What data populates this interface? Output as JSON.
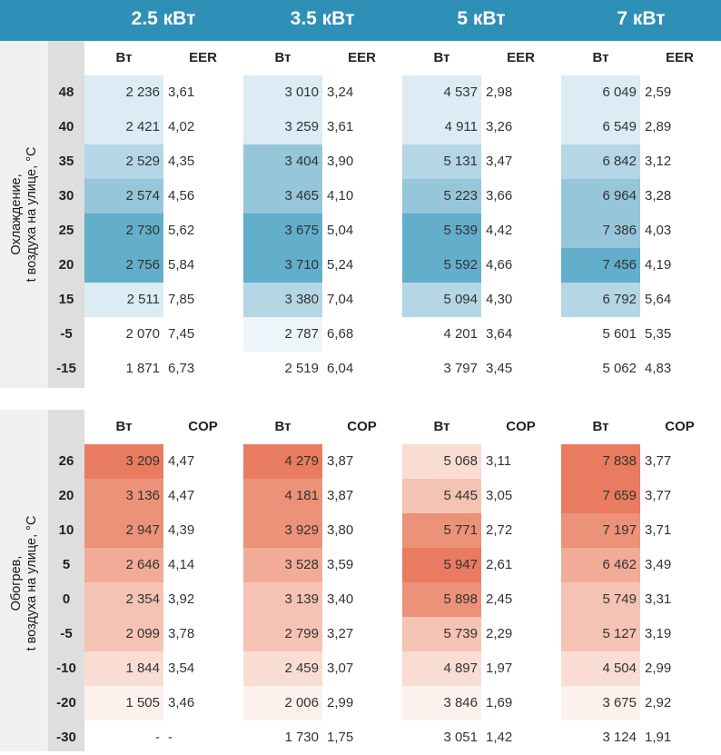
{
  "powers": [
    "2.5 кВт",
    "3.5 кВт",
    "5 кВт",
    "7 кВт"
  ],
  "cooling": {
    "side_label_line1": "Охлаждение,",
    "side_label_line2": "t воздуха на улице, °С",
    "col_w": "Вт",
    "col_ratio": "EER",
    "rows": [
      {
        "t": "48",
        "cells": [
          [
            "2 236",
            "3,61"
          ],
          [
            "3 010",
            "3,24"
          ],
          [
            "4 537",
            "2,98"
          ],
          [
            "6 049",
            "2,59"
          ]
        ],
        "levels": [
          1,
          1,
          1,
          1
        ]
      },
      {
        "t": "40",
        "cells": [
          [
            "2 421",
            "4,02"
          ],
          [
            "3 259",
            "3,61"
          ],
          [
            "4 911",
            "3,26"
          ],
          [
            "6 549",
            "2,89"
          ]
        ],
        "levels": [
          1,
          1,
          1,
          1
        ]
      },
      {
        "t": "35",
        "cells": [
          [
            "2 529",
            "4,35"
          ],
          [
            "3 404",
            "3,90"
          ],
          [
            "5 131",
            "3,47"
          ],
          [
            "6 842",
            "3,12"
          ]
        ],
        "levels": [
          2,
          3,
          2,
          2
        ]
      },
      {
        "t": "30",
        "cells": [
          [
            "2 574",
            "4,56"
          ],
          [
            "3 465",
            "4,10"
          ],
          [
            "5 223",
            "3,66"
          ],
          [
            "6 964",
            "3,28"
          ]
        ],
        "levels": [
          3,
          3,
          3,
          3
        ]
      },
      {
        "t": "25",
        "cells": [
          [
            "2 730",
            "5,62"
          ],
          [
            "3 675",
            "5,04"
          ],
          [
            "5 539",
            "4,42"
          ],
          [
            "7 386",
            "4,03"
          ]
        ],
        "levels": [
          4,
          4,
          4,
          3
        ]
      },
      {
        "t": "20",
        "cells": [
          [
            "2 756",
            "5,84"
          ],
          [
            "3 710",
            "5,24"
          ],
          [
            "5 592",
            "4,66"
          ],
          [
            "7 456",
            "4,19"
          ]
        ],
        "levels": [
          4,
          4,
          4,
          4
        ]
      },
      {
        "t": "15",
        "cells": [
          [
            "2 511",
            "7,85"
          ],
          [
            "3 380",
            "7,04"
          ],
          [
            "5 094",
            "4,30"
          ],
          [
            "6 792",
            "5,64"
          ]
        ],
        "levels": [
          1,
          2,
          2,
          2
        ]
      },
      {
        "t": "-5",
        "cells": [
          [
            "2 070",
            "7,45"
          ],
          [
            "2 787",
            "6,68"
          ],
          [
            "4 201",
            "3,64"
          ],
          [
            "5 601",
            "5,35"
          ]
        ],
        "levels": [
          0,
          0.5,
          0,
          0
        ]
      },
      {
        "t": "-15",
        "cells": [
          [
            "1 871",
            "6,73"
          ],
          [
            "2 519",
            "6,04"
          ],
          [
            "3 797",
            "3,45"
          ],
          [
            "5 062",
            "4,83"
          ]
        ],
        "levels": [
          0,
          0,
          0,
          0
        ]
      }
    ]
  },
  "heating": {
    "side_label_line1": "Обогрев,",
    "side_label_line2": "t воздуха на улице, °С",
    "col_w": "Вт",
    "col_ratio": "COP",
    "rows": [
      {
        "t": "26",
        "cells": [
          [
            "3 209",
            "4,47"
          ],
          [
            "4 279",
            "3,87"
          ],
          [
            "5 068",
            "3,11"
          ],
          [
            "7 838",
            "3,77"
          ]
        ],
        "levels": [
          5,
          5,
          1,
          5
        ]
      },
      {
        "t": "20",
        "cells": [
          [
            "3 136",
            "4,47"
          ],
          [
            "4 181",
            "3,87"
          ],
          [
            "5 445",
            "3,05"
          ],
          [
            "7 659",
            "3,77"
          ]
        ],
        "levels": [
          4,
          4,
          2,
          5
        ]
      },
      {
        "t": "10",
        "cells": [
          [
            "2 947",
            "4,39"
          ],
          [
            "3 929",
            "3,80"
          ],
          [
            "5 771",
            "2,72"
          ],
          [
            "7 197",
            "3,71"
          ]
        ],
        "levels": [
          4,
          4,
          4,
          4
        ]
      },
      {
        "t": "5",
        "cells": [
          [
            "2 646",
            "4,14"
          ],
          [
            "3 528",
            "3,59"
          ],
          [
            "5 947",
            "2,61"
          ],
          [
            "6 462",
            "3,49"
          ]
        ],
        "levels": [
          3,
          3,
          5,
          3
        ]
      },
      {
        "t": "0",
        "cells": [
          [
            "2 354",
            "3,92"
          ],
          [
            "3 139",
            "3,40"
          ],
          [
            "5 898",
            "2,45"
          ],
          [
            "5 749",
            "3,31"
          ]
        ],
        "levels": [
          2,
          2,
          4,
          2
        ]
      },
      {
        "t": "-5",
        "cells": [
          [
            "2 099",
            "3,78"
          ],
          [
            "2 799",
            "3,27"
          ],
          [
            "5 739",
            "2,29"
          ],
          [
            "5 127",
            "3,19"
          ]
        ],
        "levels": [
          2,
          2,
          2,
          2
        ]
      },
      {
        "t": "-10",
        "cells": [
          [
            "1 844",
            "3,54"
          ],
          [
            "2 459",
            "3,07"
          ],
          [
            "4 897",
            "1,97"
          ],
          [
            "4 504",
            "2,99"
          ]
        ],
        "levels": [
          1,
          1,
          1,
          1
        ]
      },
      {
        "t": "-20",
        "cells": [
          [
            "1 505",
            "3,46"
          ],
          [
            "2 006",
            "2,99"
          ],
          [
            "3 846",
            "1,69"
          ],
          [
            "3 675",
            "2,92"
          ]
        ],
        "levels": [
          0.5,
          0.5,
          0.5,
          0.5
        ]
      },
      {
        "t": "-30",
        "cells": [
          [
            "-",
            "-"
          ],
          [
            "1 730",
            "1,75"
          ],
          [
            "3 051",
            "1,42"
          ],
          [
            "3 124",
            "1,91"
          ]
        ],
        "levels": [
          0,
          0,
          0,
          0
        ]
      }
    ]
  },
  "colors": {
    "header": "#2e8fb7",
    "cool": [
      "#ffffff",
      "#eef5fa",
      "#dcebf4",
      "#b4d6e5",
      "#95c6da",
      "#62aecb"
    ],
    "heat": [
      "#ffffff",
      "#fdf1ed",
      "#f9ddd3",
      "#f5c3b3",
      "#f1ab96",
      "#ec9278",
      "#e87b60"
    ]
  }
}
